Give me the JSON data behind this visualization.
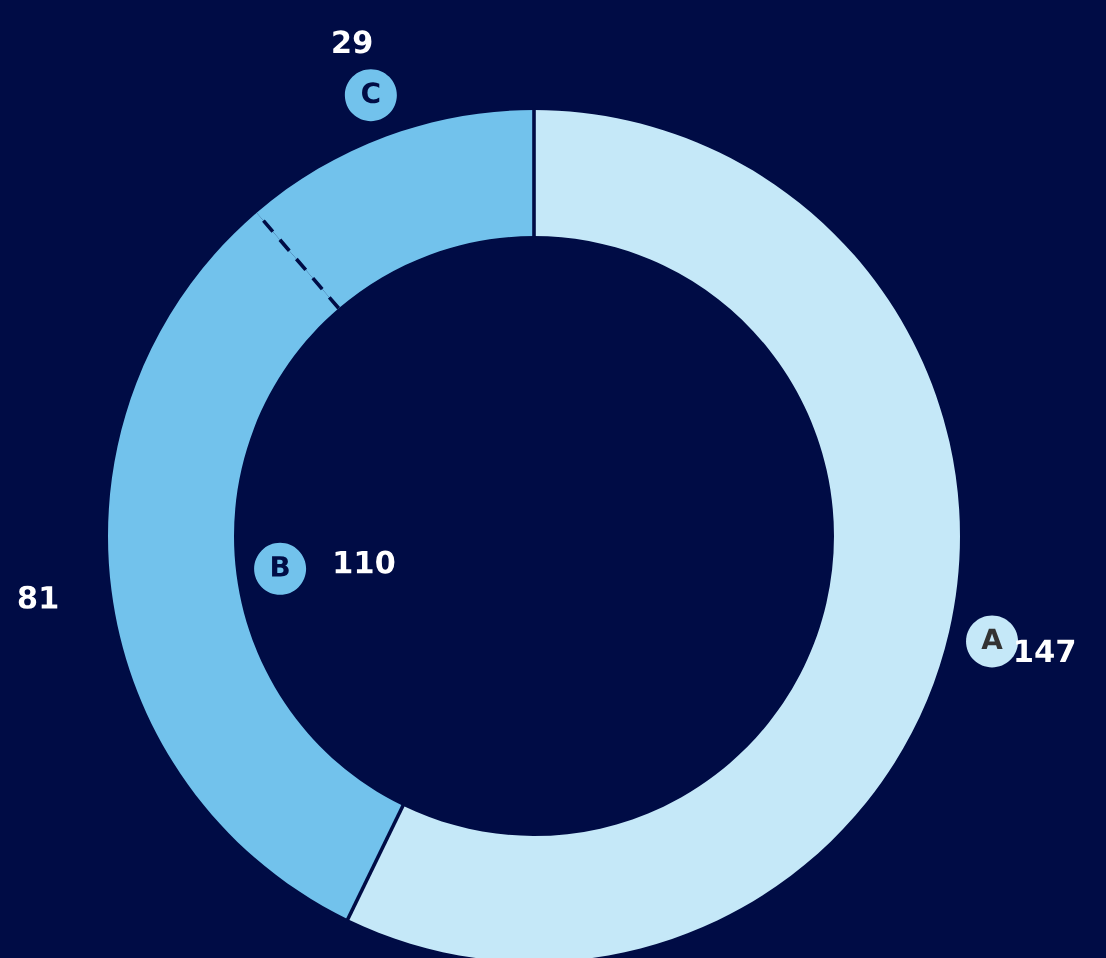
{
  "chart_data": {
    "type": "donut",
    "categories": [
      "A",
      "B",
      "C"
    ],
    "values": [
      147,
      81,
      29
    ],
    "colors": [
      "#c5e8f8",
      "#72c2ec",
      "#72c2ec"
    ],
    "value_labels": [
      "147",
      "81",
      "29"
    ],
    "annotations": [
      "110"
    ]
  }
}
